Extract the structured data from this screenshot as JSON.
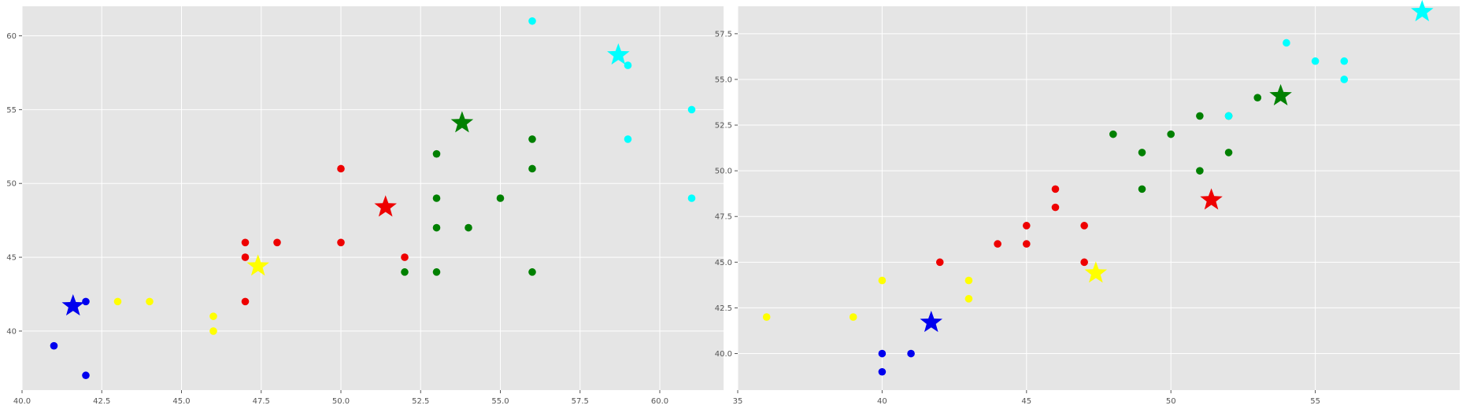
{
  "chart_data": [
    {
      "type": "scatter",
      "xlim": [
        40.0,
        62.0
      ],
      "ylim": [
        36.0,
        62.0
      ],
      "xticks": [
        "40.0",
        "42.5",
        "45.0",
        "47.5",
        "50.0",
        "52.5",
        "55.0",
        "57.5",
        "60.0"
      ],
      "yticks": [
        "40",
        "45",
        "50",
        "55",
        "60"
      ],
      "grid": true,
      "series": [
        {
          "color": "#0000ee",
          "points": [
            [
              41,
              39
            ],
            [
              42,
              42
            ],
            [
              42,
              37
            ]
          ],
          "centroid": [
            41.6,
            41.7
          ]
        },
        {
          "color": "#ffff00",
          "points": [
            [
              43,
              42
            ],
            [
              44,
              42
            ],
            [
              46,
              41
            ],
            [
              46,
              40
            ]
          ],
          "centroid": [
            47.4,
            44.4
          ]
        },
        {
          "color": "#ee0000",
          "points": [
            [
              47,
              46
            ],
            [
              47,
              45
            ],
            [
              47,
              42
            ],
            [
              48,
              46
            ],
            [
              50,
              51
            ],
            [
              50,
              46
            ],
            [
              52,
              45
            ]
          ],
          "centroid": [
            51.4,
            48.4
          ]
        },
        {
          "color": "#008000",
          "points": [
            [
              52,
              44
            ],
            [
              53,
              52
            ],
            [
              53,
              49
            ],
            [
              53,
              47
            ],
            [
              53,
              44
            ],
            [
              54,
              47
            ],
            [
              55,
              49
            ],
            [
              56,
              53
            ],
            [
              56,
              51
            ],
            [
              56,
              44
            ]
          ],
          "centroid": [
            53.8,
            54.1
          ]
        },
        {
          "color": "#00ffff",
          "points": [
            [
              56,
              61
            ],
            [
              59,
              58
            ],
            [
              59,
              53
            ],
            [
              61,
              55
            ],
            [
              61,
              49
            ]
          ],
          "centroid": [
            58.7,
            58.7
          ]
        }
      ]
    },
    {
      "type": "scatter",
      "xlim": [
        35.0,
        60.0
      ],
      "ylim": [
        38.0,
        59.0
      ],
      "xticks": [
        "35",
        "40",
        "45",
        "50",
        "55"
      ],
      "yticks": [
        "40.0",
        "42.5",
        "45.0",
        "47.5",
        "50.0",
        "52.5",
        "55.0",
        "57.5"
      ],
      "grid": true,
      "series": [
        {
          "color": "#0000ee",
          "points": [
            [
              40,
              40
            ],
            [
              40,
              39
            ],
            [
              41,
              40
            ]
          ],
          "centroid": [
            41.7,
            41.7
          ]
        },
        {
          "color": "#ffff00",
          "points": [
            [
              36,
              42
            ],
            [
              39,
              42
            ],
            [
              40,
              44
            ],
            [
              43,
              44
            ],
            [
              43,
              43
            ]
          ],
          "centroid": [
            47.4,
            44.4
          ]
        },
        {
          "color": "#ee0000",
          "points": [
            [
              42,
              45
            ],
            [
              44,
              46
            ],
            [
              45,
              47
            ],
            [
              45,
              46
            ],
            [
              46,
              49
            ],
            [
              46,
              48
            ],
            [
              47,
              47
            ],
            [
              47,
              45
            ]
          ],
          "centroid": [
            51.4,
            48.4
          ]
        },
        {
          "color": "#008000",
          "points": [
            [
              48,
              52
            ],
            [
              49,
              51
            ],
            [
              49,
              49
            ],
            [
              50,
              52
            ],
            [
              51,
              53
            ],
            [
              51,
              50
            ],
            [
              52,
              53
            ],
            [
              52,
              51
            ],
            [
              53,
              54
            ]
          ],
          "centroid": [
            53.8,
            54.1
          ]
        },
        {
          "color": "#00ffff",
          "points": [
            [
              52,
              53
            ],
            [
              54,
              57
            ],
            [
              55,
              56
            ],
            [
              56,
              56
            ],
            [
              56,
              55
            ]
          ],
          "centroid": [
            58.7,
            58.7
          ]
        }
      ]
    }
  ]
}
